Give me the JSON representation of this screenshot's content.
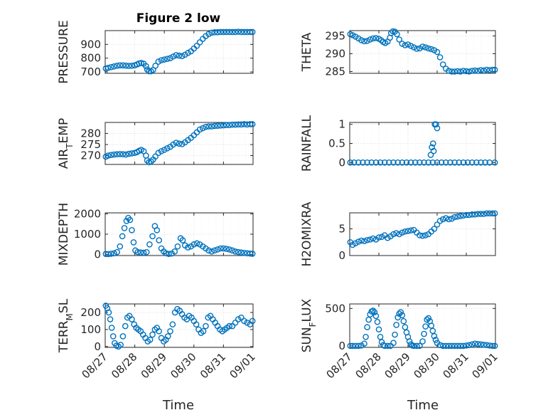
{
  "figure": {
    "title": "Figure 2 low",
    "marker_color": "#0072BD",
    "axis_color": "#262626",
    "grid_color": "#d9d9d9"
  },
  "chart_data": [
    {
      "type": "scatter",
      "title": "Figure 2 low",
      "ylabel": "PRESSURE",
      "xlabel": "",
      "ylim": [
        690,
        1000
      ],
      "yticks": [
        700,
        800,
        900
      ],
      "xlim": [
        0,
        5
      ],
      "grid": "on",
      "series": [
        {
          "x": [
            0.02,
            0.1,
            0.2,
            0.3,
            0.4,
            0.5,
            0.6,
            0.7,
            0.8,
            0.9,
            1.0,
            1.08,
            1.15,
            1.22,
            1.3,
            1.38,
            1.42,
            1.48,
            1.55,
            1.62,
            1.7,
            1.8,
            1.9,
            2.0,
            2.1,
            2.2,
            2.3,
            2.4,
            2.5,
            2.6,
            2.7,
            2.8,
            2.9,
            3.0,
            3.1,
            3.2,
            3.3,
            3.4,
            3.5,
            3.6,
            3.7,
            3.8,
            3.9,
            4.0,
            4.1,
            4.2,
            4.3,
            4.4,
            4.5,
            4.6,
            4.7,
            4.8,
            4.9,
            4.98
          ],
          "y": [
            725,
            730,
            735,
            740,
            745,
            748,
            748,
            746,
            744,
            745,
            748,
            755,
            762,
            765,
            760,
            742,
            718,
            705,
            705,
            715,
            745,
            775,
            785,
            790,
            795,
            800,
            812,
            822,
            818,
            815,
            825,
            838,
            850,
            870,
            890,
            915,
            940,
            960,
            975,
            985,
            988,
            988,
            990,
            990,
            990,
            990,
            990,
            990,
            992,
            990,
            990,
            990,
            990,
            990
          ]
        }
      ]
    },
    {
      "type": "scatter",
      "ylabel": "THETA",
      "xlabel": "",
      "ylim": [
        284.5,
        296.5
      ],
      "yticks": [
        285,
        290,
        295
      ],
      "xlim": [
        0,
        5
      ],
      "grid": "on",
      "series": [
        {
          "x": [
            0.02,
            0.1,
            0.2,
            0.3,
            0.4,
            0.5,
            0.6,
            0.7,
            0.8,
            0.9,
            1.0,
            1.08,
            1.15,
            1.22,
            1.3,
            1.38,
            1.42,
            1.48,
            1.55,
            1.62,
            1.7,
            1.8,
            1.9,
            2.0,
            2.1,
            2.2,
            2.3,
            2.4,
            2.5,
            2.6,
            2.7,
            2.8,
            2.9,
            3.0,
            3.1,
            3.2,
            3.3,
            3.4,
            3.5,
            3.6,
            3.7,
            3.8,
            3.9,
            4.0,
            4.1,
            4.2,
            4.3,
            4.4,
            4.5,
            4.6,
            4.7,
            4.8,
            4.9,
            4.98
          ],
          "y": [
            295.5,
            295.2,
            294.8,
            294.3,
            293.8,
            293.5,
            293.6,
            294.0,
            294.3,
            294.4,
            294.2,
            293.8,
            293.3,
            293.0,
            293.4,
            294.5,
            295.8,
            296.3,
            296.2,
            295.5,
            294.0,
            292.8,
            292.4,
            292.6,
            292.2,
            291.8,
            291.4,
            291.5,
            292.0,
            291.8,
            291.5,
            291.3,
            291.0,
            290.5,
            289.0,
            287.0,
            285.8,
            285.2,
            285.0,
            285.0,
            285.1,
            285.0,
            285.2,
            285.1,
            285.0,
            285.2,
            285.3,
            285.2,
            285.4,
            285.3,
            285.5,
            285.4,
            285.5,
            285.5
          ]
        }
      ]
    },
    {
      "type": "scatter",
      "ylabel": "AIR_TEMP",
      "xlabel": "",
      "ylim": [
        266,
        285
      ],
      "yticks": [
        270,
        275,
        280
      ],
      "xlim": [
        0,
        5
      ],
      "grid": "on",
      "series": [
        {
          "x": [
            0.02,
            0.1,
            0.2,
            0.3,
            0.4,
            0.5,
            0.6,
            0.7,
            0.8,
            0.9,
            1.0,
            1.08,
            1.15,
            1.22,
            1.3,
            1.38,
            1.42,
            1.48,
            1.55,
            1.62,
            1.7,
            1.8,
            1.9,
            2.0,
            2.1,
            2.2,
            2.3,
            2.4,
            2.5,
            2.6,
            2.7,
            2.8,
            2.9,
            3.0,
            3.1,
            3.2,
            3.3,
            3.4,
            3.5,
            3.6,
            3.7,
            3.8,
            3.9,
            4.0,
            4.1,
            4.2,
            4.3,
            4.4,
            4.5,
            4.6,
            4.7,
            4.8,
            4.9,
            4.98
          ],
          "y": [
            269.5,
            270.0,
            270.3,
            270.5,
            270.6,
            270.7,
            270.6,
            270.5,
            270.8,
            271.0,
            271.2,
            271.6,
            272.2,
            272.6,
            272.0,
            270.0,
            267.8,
            267.0,
            267.3,
            268.2,
            269.6,
            271.2,
            272.0,
            272.6,
            273.3,
            274.0,
            275.0,
            275.8,
            275.4,
            275.2,
            276.0,
            277.0,
            278.0,
            279.2,
            280.5,
            281.8,
            282.4,
            283.0,
            283.2,
            283.2,
            283.4,
            283.5,
            283.6,
            283.7,
            283.8,
            283.8,
            284.0,
            284.0,
            284.1,
            284.1,
            284.2,
            284.1,
            284.2,
            284.2
          ]
        }
      ]
    },
    {
      "type": "scatter",
      "ylabel": "RAINFALL",
      "xlabel": "",
      "ylim": [
        -0.05,
        1.05
      ],
      "yticks": [
        0,
        0.5,
        1
      ],
      "ytickLabels": [
        "0",
        "0.5",
        "1"
      ],
      "xlim": [
        0,
        5
      ],
      "grid": "on",
      "series": [
        {
          "x": [
            0.02,
            0.15,
            0.3,
            0.45,
            0.6,
            0.75,
            0.9,
            1.05,
            1.2,
            1.35,
            1.5,
            1.65,
            1.8,
            1.95,
            2.1,
            2.25,
            2.4,
            2.55,
            2.7,
            2.85,
            3.0,
            3.15,
            3.3,
            3.45,
            3.6,
            3.75,
            3.9,
            4.05,
            4.2,
            4.35,
            4.5,
            4.65,
            4.8,
            4.98,
            2.78,
            2.82,
            2.86,
            2.92,
            2.96,
            3.0,
            2.88
          ],
          "y": [
            0,
            0,
            0,
            0,
            0,
            0,
            0,
            0,
            0,
            0,
            0,
            0,
            0,
            0,
            0,
            0,
            0,
            0,
            0,
            0,
            0,
            0,
            0,
            0,
            0,
            0,
            0,
            0,
            0,
            0,
            0,
            0,
            0,
            0,
            0.2,
            0.4,
            0.5,
            1.0,
            1.0,
            0.9,
            0.3
          ]
        }
      ]
    },
    {
      "type": "scatter",
      "ylabel": "MIXDEPTH",
      "xlabel": "",
      "ylim": [
        -50,
        2050
      ],
      "yticks": [
        0,
        1000,
        2000
      ],
      "xlim": [
        0,
        5
      ],
      "grid": "on",
      "series": [
        {
          "x": [
            0.02,
            0.1,
            0.2,
            0.3,
            0.4,
            0.5,
            0.58,
            0.65,
            0.72,
            0.78,
            0.84,
            0.9,
            0.96,
            1.02,
            1.1,
            1.2,
            1.3,
            1.4,
            1.5,
            1.6,
            1.68,
            1.75,
            1.82,
            1.9,
            1.98,
            2.05,
            2.15,
            2.25,
            2.35,
            2.45,
            2.55,
            2.62,
            2.7,
            2.8,
            2.9,
            3.0,
            3.1,
            3.2,
            3.3,
            3.4,
            3.5,
            3.6,
            3.7,
            3.8,
            3.9,
            4.0,
            4.1,
            4.2,
            4.3,
            4.4,
            4.5,
            4.6,
            4.7,
            4.8,
            4.9,
            4.98
          ],
          "y": [
            30,
            20,
            40,
            60,
            120,
            400,
            900,
            1300,
            1650,
            1800,
            1700,
            1200,
            600,
            200,
            120,
            100,
            90,
            120,
            500,
            900,
            1400,
            1200,
            700,
            300,
            150,
            60,
            30,
            50,
            150,
            400,
            800,
            700,
            450,
            350,
            400,
            500,
            550,
            500,
            400,
            300,
            200,
            150,
            200,
            250,
            300,
            300,
            280,
            250,
            200,
            150,
            120,
            100,
            80,
            60,
            50,
            40
          ]
        }
      ]
    },
    {
      "type": "scatter",
      "ylabel": "H2OMIXRA",
      "xlabel": "",
      "ylim": [
        0,
        8
      ],
      "yticks": [
        0,
        5
      ],
      "xlim": [
        0,
        5
      ],
      "grid": "on",
      "series": [
        {
          "x": [
            0.02,
            0.1,
            0.2,
            0.3,
            0.4,
            0.5,
            0.6,
            0.7,
            0.8,
            0.9,
            1.0,
            1.1,
            1.2,
            1.3,
            1.4,
            1.5,
            1.6,
            1.7,
            1.8,
            1.9,
            2.0,
            2.1,
            2.2,
            2.3,
            2.4,
            2.5,
            2.6,
            2.7,
            2.8,
            2.9,
            3.0,
            3.1,
            3.2,
            3.3,
            3.4,
            3.5,
            3.6,
            3.7,
            3.8,
            3.9,
            4.0,
            4.1,
            4.2,
            4.3,
            4.4,
            4.5,
            4.6,
            4.7,
            4.8,
            4.9,
            4.98
          ],
          "y": [
            2.5,
            2.0,
            2.3,
            2.6,
            2.8,
            2.7,
            2.9,
            3.0,
            3.2,
            3.0,
            3.4,
            3.5,
            3.8,
            3.3,
            3.6,
            4.0,
            4.2,
            4.0,
            4.3,
            4.5,
            4.6,
            4.7,
            4.8,
            4.3,
            3.8,
            3.7,
            3.8,
            4.0,
            4.5,
            5.0,
            5.8,
            6.5,
            6.8,
            7.0,
            6.8,
            6.9,
            7.2,
            7.3,
            7.4,
            7.5,
            7.6,
            7.6,
            7.7,
            7.7,
            7.8,
            7.8,
            7.8,
            7.9,
            7.9,
            7.9,
            7.9
          ]
        }
      ]
    },
    {
      "type": "scatter",
      "ylabel": "TERR_MSL",
      "xlabel": "",
      "ylim": [
        -5,
        250
      ],
      "yticks": [
        0,
        100,
        200
      ],
      "xlim": [
        0,
        5
      ],
      "grid": "on",
      "series": [
        {
          "x": [
            0.02,
            0.07,
            0.12,
            0.17,
            0.22,
            0.27,
            0.32,
            0.38,
            0.45,
            0.52,
            0.6,
            0.68,
            0.75,
            0.82,
            0.9,
            0.98,
            1.05,
            1.12,
            1.2,
            1.28,
            1.36,
            1.44,
            1.52,
            1.6,
            1.68,
            1.75,
            1.82,
            1.9,
            1.98,
            2.05,
            2.12,
            2.2,
            2.28,
            2.36,
            2.44,
            2.52,
            2.6,
            2.68,
            2.76,
            2.84,
            2.92,
            3.0,
            3.08,
            3.16,
            3.24,
            3.32,
            3.4,
            3.48,
            3.56,
            3.64,
            3.72,
            3.8,
            3.88,
            3.96,
            4.04,
            4.12,
            4.2,
            4.3,
            4.4,
            4.5,
            4.6,
            4.7,
            4.8,
            4.9,
            4.98
          ],
          "y": [
            240,
            225,
            200,
            160,
            110,
            60,
            20,
            5,
            0,
            10,
            60,
            120,
            170,
            180,
            160,
            130,
            110,
            100,
            90,
            70,
            50,
            30,
            40,
            70,
            100,
            110,
            90,
            50,
            30,
            40,
            60,
            90,
            130,
            200,
            220,
            210,
            190,
            170,
            160,
            180,
            170,
            150,
            130,
            100,
            80,
            90,
            120,
            170,
            180,
            160,
            140,
            120,
            100,
            90,
            100,
            110,
            120,
            120,
            140,
            160,
            170,
            150,
            140,
            130,
            150
          ]
        }
      ]
    },
    {
      "type": "scatter",
      "ylabel": "SUN_FLUX",
      "xlabel": "",
      "ylim": [
        -20,
        560
      ],
      "yticks": [
        0,
        500
      ],
      "xlim": [
        0,
        5
      ],
      "grid": "on",
      "series": [
        {
          "x": [
            0.02,
            0.1,
            0.2,
            0.3,
            0.4,
            0.5,
            0.55,
            0.6,
            0.65,
            0.7,
            0.75,
            0.8,
            0.85,
            0.9,
            0.95,
            1.0,
            1.05,
            1.1,
            1.15,
            1.2,
            1.3,
            1.4,
            1.5,
            1.55,
            1.6,
            1.65,
            1.7,
            1.75,
            1.8,
            1.85,
            1.9,
            1.95,
            2.0,
            2.05,
            2.1,
            2.15,
            2.2,
            2.3,
            2.4,
            2.5,
            2.55,
            2.6,
            2.65,
            2.7,
            2.75,
            2.8,
            2.85,
            2.9,
            2.95,
            3.0,
            3.1,
            3.2,
            3.3,
            3.4,
            3.5,
            3.6,
            3.7,
            3.8,
            3.9,
            4.0,
            4.1,
            4.2,
            4.3,
            4.4,
            4.5,
            4.6,
            4.7,
            4.8,
            4.9,
            4.98
          ],
          "y": [
            0,
            0,
            0,
            0,
            5,
            30,
            120,
            250,
            350,
            420,
            460,
            470,
            450,
            400,
            320,
            220,
            120,
            50,
            10,
            0,
            0,
            0,
            40,
            150,
            280,
            380,
            430,
            450,
            410,
            330,
            250,
            180,
            120,
            60,
            20,
            5,
            0,
            0,
            0,
            60,
            160,
            260,
            350,
            370,
            330,
            270,
            200,
            130,
            80,
            40,
            10,
            0,
            0,
            0,
            0,
            0,
            0,
            0,
            0,
            5,
            10,
            20,
            30,
            25,
            20,
            15,
            10,
            5,
            0,
            0
          ]
        }
      ]
    }
  ],
  "xaxis": {
    "tick_labels": [
      "08/27",
      "08/28",
      "08/29",
      "08/30",
      "08/31",
      "09/01"
    ],
    "label": "Time"
  }
}
